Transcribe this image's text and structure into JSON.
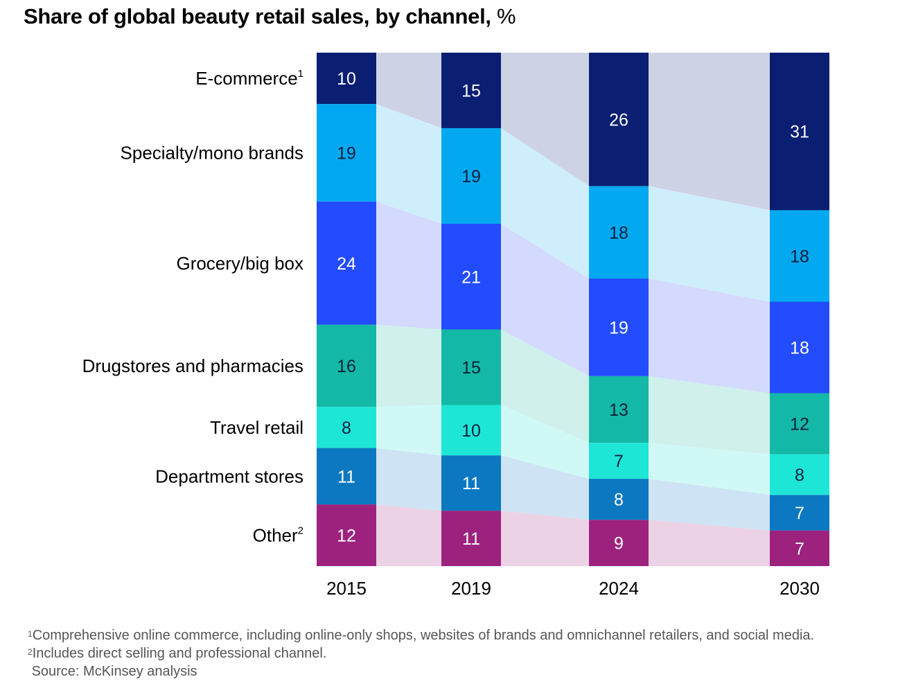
{
  "title": {
    "main": "Share of global beauty retail sales, by channel,",
    "unit": "%"
  },
  "chart_data": {
    "type": "bar",
    "stacked": true,
    "stack_order": "top-to-bottom",
    "categories": [
      "2015",
      "2019",
      "2024",
      "2030"
    ],
    "series": [
      {
        "name": "E-commerce",
        "sup": "1",
        "values": [
          10,
          15,
          26,
          31
        ],
        "color": "#0a1f72",
        "band": "#cdd3e5",
        "label_color": "#ffffff"
      },
      {
        "name": "Specialty/mono brands",
        "sup": "",
        "values": [
          19,
          19,
          18,
          18
        ],
        "color": "#03a9f0",
        "band": "#cfeefb",
        "label_color": "#0a1f3d"
      },
      {
        "name": "Grocery/big box",
        "sup": "",
        "values": [
          24,
          21,
          19,
          18
        ],
        "color": "#224cfd",
        "band": "#d4d9fe",
        "label_color": "#ffffff"
      },
      {
        "name": "Drugstores and pharmacies",
        "sup": "",
        "values": [
          16,
          15,
          13,
          12
        ],
        "color": "#14b8a6",
        "band": "#d0f0ec",
        "label_color": "#0a1f3d"
      },
      {
        "name": "Travel retail",
        "sup": "",
        "values": [
          8,
          10,
          7,
          8
        ],
        "color": "#1ee6d6",
        "band": "#d0f9f6",
        "label_color": "#0a1f3d"
      },
      {
        "name": "Department stores",
        "sup": "",
        "values": [
          11,
          11,
          8,
          7
        ],
        "color": "#0b78c1",
        "band": "#cee3f3",
        "label_color": "#ffffff"
      },
      {
        "name": "Other",
        "sup": "2",
        "values": [
          12,
          11,
          9,
          7
        ],
        "color": "#9c227e",
        "band": "#ebd2e5",
        "label_color": "#ffffff"
      }
    ],
    "ylim": [
      0,
      100
    ],
    "grid": false,
    "legend": "left"
  },
  "footnotes": [
    {
      "mark": "1",
      "text": "Comprehensive online commerce, including online-only shops, websites of brands and omnichannel retailers, and social media."
    },
    {
      "mark": "2",
      "text": "Includes direct selling and professional channel."
    }
  ],
  "source": "Source: McKinsey analysis"
}
